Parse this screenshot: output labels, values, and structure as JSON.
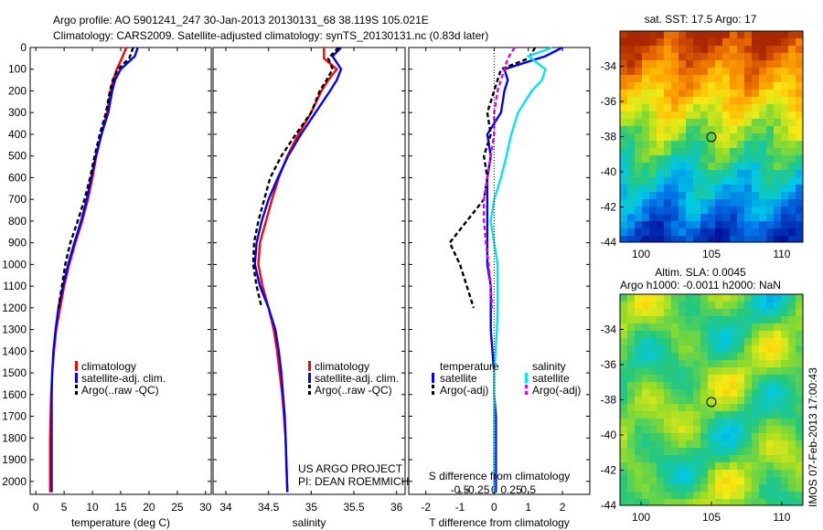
{
  "header": {
    "line1": "Argo profile: AO 5901241_247 30-Jan-2013 20130131_68 38.119S 105.021E",
    "line2": "Climatology: CARS2009. Satellite-adjusted climatology: synTS_20130131.nc (0.83d later)"
  },
  "colors": {
    "climatology": "#ff0000",
    "satellite": "#0000ff",
    "argo": "#000000",
    "sal_satellite": "#00e5ee",
    "sal_argo": "#e000e0"
  },
  "footer": {
    "project": "US ARGO PROJECT",
    "pi": "PI: DEAN ROEMMICH",
    "timestamp": "IMOS 07-Feb-2013 17:00:43"
  },
  "chart_data": [
    {
      "type": "line",
      "name_key": "temperature",
      "xlabel": "temperature (deg C)",
      "ylabel": "",
      "xlim": [
        -1,
        31
      ],
      "ylim": [
        2060,
        0
      ],
      "xticks": [
        0,
        5,
        10,
        15,
        20,
        25,
        30
      ],
      "yticks": [
        0,
        100,
        200,
        300,
        400,
        500,
        600,
        700,
        800,
        900,
        1000,
        1100,
        1200,
        1300,
        1400,
        1500,
        1600,
        1700,
        1800,
        1900,
        2000
      ],
      "legend": [
        "climatology",
        "satellite-adj. clim.",
        "Argo(..raw -QC)"
      ],
      "legend_placement": "lower-right",
      "series": [
        {
          "name": "climatology",
          "color": "#ff0000",
          "dash": "none",
          "x": [
            16.0,
            15.2,
            14.3,
            13.7,
            13.2,
            12.6,
            11.6,
            10.7,
            10.0,
            9.2,
            8.2,
            7.0,
            5.9,
            5.0,
            4.3,
            3.6,
            3.2,
            2.9,
            2.7,
            2.6,
            2.5,
            2.5
          ],
          "y": [
            0,
            50,
            100,
            150,
            200,
            300,
            400,
            500,
            600,
            700,
            800,
            900,
            1000,
            1100,
            1200,
            1300,
            1400,
            1500,
            1600,
            1700,
            1800,
            2050
          ]
        },
        {
          "name": "satellite-adj. clim.",
          "color": "#0000ff",
          "dash": "none",
          "x": [
            18.0,
            17.5,
            15.0,
            14.0,
            13.5,
            12.8,
            11.6,
            10.6,
            9.8,
            9.0,
            8.0,
            6.8,
            5.7,
            4.8,
            4.0,
            3.5,
            3.1,
            2.9,
            2.8,
            2.8,
            2.8,
            2.8
          ],
          "y": [
            0,
            40,
            100,
            150,
            200,
            300,
            400,
            500,
            600,
            700,
            800,
            900,
            1000,
            1100,
            1200,
            1300,
            1400,
            1500,
            1600,
            1700,
            1800,
            2050
          ]
        },
        {
          "name": "Argo(..raw -QC)",
          "color": "#000000",
          "dash": "5,3",
          "x": [
            17.2,
            16.5,
            14.5,
            13.6,
            13.1,
            12.4,
            11.3,
            10.4,
            9.6,
            8.6,
            7.4,
            6.1,
            5.2,
            4.6,
            4.0
          ],
          "y": [
            0,
            50,
            100,
            150,
            200,
            300,
            400,
            500,
            600,
            700,
            800,
            900,
            1000,
            1100,
            1200
          ]
        }
      ]
    },
    {
      "type": "line",
      "name_key": "salinity",
      "xlabel": "salinity",
      "ylabel": "",
      "xlim": [
        33.85,
        36.1
      ],
      "ylim": [
        2060,
        0
      ],
      "xticks": [
        34,
        34.5,
        35,
        35.5,
        36
      ],
      "xticklabels": [
        "34",
        "34.5",
        "35",
        "35.5",
        "36"
      ],
      "legend": [
        "climatology",
        "satellite-adj. clim.",
        "Argo(..raw -QC)"
      ],
      "legend_placement": "lower-right",
      "series": [
        {
          "name": "climatology",
          "color": "#ff0000",
          "dash": "none",
          "x": [
            35.15,
            35.15,
            35.3,
            35.2,
            35.12,
            35.0,
            34.85,
            34.72,
            34.62,
            34.54,
            34.47,
            34.4,
            34.38,
            34.43,
            34.5,
            34.56,
            34.6,
            34.63,
            34.66,
            34.68,
            34.7,
            34.72
          ],
          "y": [
            0,
            50,
            100,
            150,
            200,
            300,
            400,
            500,
            600,
            700,
            800,
            900,
            1000,
            1100,
            1200,
            1300,
            1400,
            1500,
            1600,
            1700,
            1800,
            2050
          ]
        },
        {
          "name": "satellite-adj. clim.",
          "color": "#0000ff",
          "dash": "none",
          "x": [
            35.35,
            35.25,
            35.35,
            35.3,
            35.22,
            35.05,
            34.88,
            34.73,
            34.61,
            34.5,
            34.42,
            34.36,
            34.34,
            34.4,
            34.5,
            34.58,
            34.62,
            34.65,
            34.67,
            34.69,
            34.7,
            34.72
          ],
          "y": [
            0,
            40,
            100,
            150,
            200,
            300,
            400,
            500,
            600,
            700,
            800,
            900,
            1000,
            1100,
            1200,
            1300,
            1400,
            1500,
            1600,
            1700,
            1800,
            2050
          ]
        },
        {
          "name": "Argo(..raw -QC)",
          "color": "#000000",
          "dash": "5,3",
          "x": [
            35.32,
            35.2,
            35.25,
            35.18,
            35.1,
            35.0,
            34.82,
            34.65,
            34.52,
            34.45,
            34.38,
            34.33,
            34.32,
            34.36,
            34.42
          ],
          "y": [
            0,
            50,
            100,
            150,
            200,
            300,
            400,
            500,
            600,
            700,
            800,
            900,
            1000,
            1100,
            1200
          ]
        }
      ]
    },
    {
      "type": "line",
      "name_key": "difference",
      "xlabel": "T difference from climatology",
      "xlabel_top": "S difference from climatology",
      "xlim": [
        -2.5,
        2.8
      ],
      "ylim": [
        2060,
        0
      ],
      "xticks": [
        -2,
        -1,
        0,
        1,
        2
      ],
      "sticks": [
        -0.5,
        -0.25,
        0,
        0.25,
        0.5
      ],
      "sticklabels": [
        "-0.5",
        "-0.25",
        "0",
        "0.25",
        "0.5"
      ],
      "legend_headers": [
        "temperature",
        "salinity"
      ],
      "legend": [
        "satellite",
        "Argo(-adj)",
        "satellite",
        "Argo(-adj)"
      ],
      "legend_placement": "lower-center",
      "series": [
        {
          "name": "satellite",
          "group": "temperature",
          "color": "#0000ff",
          "dash": "none",
          "x": [
            2.0,
            1.5,
            0.3,
            0.4,
            0.3,
            0.2,
            -0.2,
            -0.1,
            -0.2,
            -0.2,
            -0.2,
            -0.2,
            -0.2,
            -0.1,
            -0.1,
            -0.1,
            -0.05,
            0,
            0,
            0.05,
            0.05,
            0.05
          ],
          "y": [
            0,
            40,
            100,
            150,
            200,
            300,
            400,
            500,
            600,
            700,
            800,
            900,
            1000,
            1100,
            1200,
            1300,
            1400,
            1500,
            1600,
            1700,
            1800,
            2050
          ]
        },
        {
          "name": "Argo(-adj)",
          "group": "temperature",
          "color": "#000000",
          "dash": "5,3",
          "x": [
            1.2,
            1.0,
            0.2,
            0.1,
            0.0,
            -0.2,
            -0.1,
            -0.3,
            -0.2,
            -0.3,
            -0.8,
            -1.3,
            -1.0,
            -0.8,
            -0.6
          ],
          "y": [
            0,
            50,
            100,
            150,
            200,
            300,
            400,
            500,
            600,
            700,
            800,
            900,
            1000,
            1100,
            1200
          ]
        },
        {
          "name": "satellite",
          "group": "salinity",
          "color": "#00e5ee",
          "dash": "none",
          "x": [
            0.85,
            0.5,
            0.75,
            0.7,
            0.55,
            0.35,
            0.25,
            0.18,
            0.1,
            0.0,
            -0.05,
            0.0,
            0.05,
            0.05,
            0.05,
            0.04,
            0.02,
            0.0,
            0.0,
            0.0,
            0.0,
            0.0
          ],
          "y": [
            0,
            40,
            100,
            150,
            200,
            300,
            400,
            500,
            600,
            700,
            800,
            900,
            1000,
            1100,
            1200,
            1300,
            1400,
            1500,
            1600,
            1700,
            1800,
            2050
          ]
        },
        {
          "name": "Argo(-adj)",
          "group": "salinity",
          "color": "#e000e0",
          "dash": "5,3",
          "x": [
            0.3,
            0.2,
            0.15,
            0.1,
            0.05,
            0.0,
            0.0,
            -0.05,
            -0.1,
            -0.15,
            -0.15,
            -0.12,
            -0.08,
            -0.05,
            -0.03
          ],
          "y": [
            0,
            50,
            100,
            150,
            200,
            300,
            400,
            500,
            600,
            700,
            800,
            900,
            1000,
            1100,
            1200
          ]
        }
      ]
    },
    {
      "type": "heatmap",
      "name_key": "sst_map",
      "title": "sat. SST: 17.5 Argo: 17",
      "xlim": [
        98.5,
        111.5
      ],
      "ylim": [
        -44,
        -32
      ],
      "xticks": [
        100,
        105,
        110
      ],
      "yticks": [
        -34,
        -36,
        -38,
        -40,
        -42,
        -44
      ],
      "marker": {
        "lon": 105.021,
        "lat": -38.119
      }
    },
    {
      "type": "heatmap",
      "name_key": "sla_map",
      "title": "Altim. SLA: 0.0045",
      "subtitle": "Argo h1000: -0.0011 h2000: NaN",
      "xlim": [
        98.5,
        111.5
      ],
      "ylim": [
        -44,
        -32
      ],
      "xticks": [
        100,
        105,
        110
      ],
      "yticks": [
        -34,
        -36,
        -38,
        -40,
        -42,
        -44
      ],
      "marker": {
        "lon": 105.021,
        "lat": -38.119
      }
    }
  ]
}
